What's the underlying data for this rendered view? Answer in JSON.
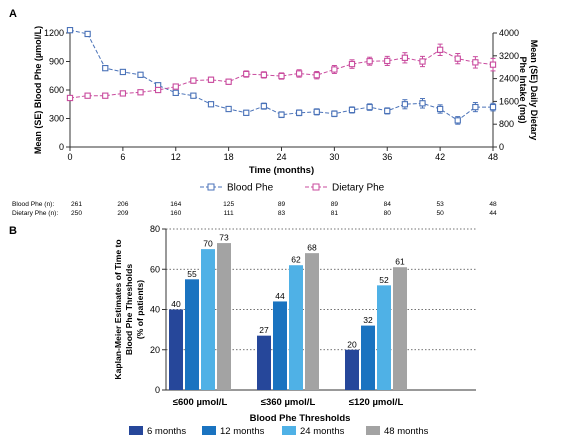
{
  "chart_data": [
    {
      "panel": "A",
      "type": "line",
      "xlabel": "Time (months)",
      "ylabel_left": "Mean (SE) Blood Phe (µmol/L)",
      "ylabel_right": "Mean (SE) Daily Dietary Phe Intake (mg)",
      "xlim": [
        0,
        48
      ],
      "xticks": [
        0,
        6,
        12,
        18,
        24,
        30,
        36,
        42,
        48
      ],
      "ylim_left": [
        0,
        1200
      ],
      "yticks_left": [
        0,
        300,
        600,
        900,
        1200
      ],
      "ylim_right": [
        0,
        4000
      ],
      "yticks_right": [
        0,
        800,
        1600,
        2400,
        3200,
        4000
      ],
      "legend_placement": "bottom-center",
      "series": [
        {
          "name": "Blood Phe",
          "axis": "left",
          "color": "#4a72b8",
          "marker": "square",
          "x": [
            0,
            2,
            4,
            6,
            8,
            10,
            12,
            14,
            16,
            18,
            20,
            22,
            24,
            26,
            28,
            30,
            32,
            34,
            36,
            38,
            40,
            42,
            44,
            46,
            48
          ],
          "values": [
            1230,
            1190,
            830,
            790,
            760,
            650,
            570,
            540,
            450,
            400,
            360,
            430,
            340,
            360,
            370,
            350,
            390,
            420,
            380,
            450,
            460,
            400,
            280,
            420,
            420
          ],
          "errors": [
            12,
            14,
            24,
            24,
            24,
            22,
            24,
            24,
            24,
            26,
            26,
            32,
            30,
            30,
            32,
            30,
            32,
            34,
            32,
            48,
            50,
            44,
            40,
            48,
            40
          ]
        },
        {
          "name": "Dietary Phe",
          "axis": "right",
          "color": "#c94b9e",
          "marker": "square",
          "x": [
            0,
            2,
            4,
            6,
            8,
            10,
            12,
            14,
            16,
            18,
            20,
            22,
            24,
            26,
            28,
            30,
            32,
            34,
            36,
            38,
            40,
            42,
            44,
            46,
            48
          ],
          "values": [
            1720,
            1800,
            1800,
            1880,
            1920,
            2000,
            2120,
            2330,
            2360,
            2290,
            2560,
            2530,
            2490,
            2580,
            2520,
            2720,
            2910,
            3010,
            3020,
            3130,
            3000,
            3410,
            3100,
            2970,
            2890
          ],
          "errors": [
            60,
            70,
            60,
            70,
            70,
            80,
            80,
            90,
            90,
            90,
            110,
            110,
            110,
            130,
            130,
            140,
            150,
            140,
            160,
            180,
            180,
            200,
            180,
            200,
            220
          ]
        }
      ],
      "n_table": {
        "rows": [
          {
            "label": "Blood Phe (n):",
            "values": [
              "261",
              "206",
              "164",
              "125",
              "89",
              "89",
              "84",
              "53",
              "48"
            ]
          },
          {
            "label": "Dietary Phe (n):",
            "values": [
              "250",
              "209",
              "160",
              "111",
              "83",
              "81",
              "80",
              "50",
              "44"
            ]
          }
        ]
      }
    },
    {
      "panel": "B",
      "type": "bar",
      "xlabel": "Blood Phe Thresholds",
      "ylabel": "Kaplan-Meier Estimates of Time to Blood Phe Thresholds (% of patients)",
      "ylim": [
        0,
        80
      ],
      "yticks": [
        0,
        20,
        40,
        60,
        80
      ],
      "grid": "dotted horizontal",
      "legend_placement": "bottom-center",
      "categories": [
        "≤600 µmol/L",
        "≤360 µmol/L",
        "≤120 µmol/L"
      ],
      "series": [
        {
          "name": "6 months",
          "color": "#26479a",
          "values": [
            40,
            27,
            20
          ]
        },
        {
          "name": "12 months",
          "color": "#1a73c0",
          "values": [
            55,
            44,
            32
          ]
        },
        {
          "name": "24 months",
          "color": "#4fb1e6",
          "values": [
            70,
            62,
            52
          ]
        },
        {
          "name": "48 months",
          "color": "#a3a3a3",
          "values": [
            73,
            68,
            61
          ]
        }
      ]
    }
  ]
}
